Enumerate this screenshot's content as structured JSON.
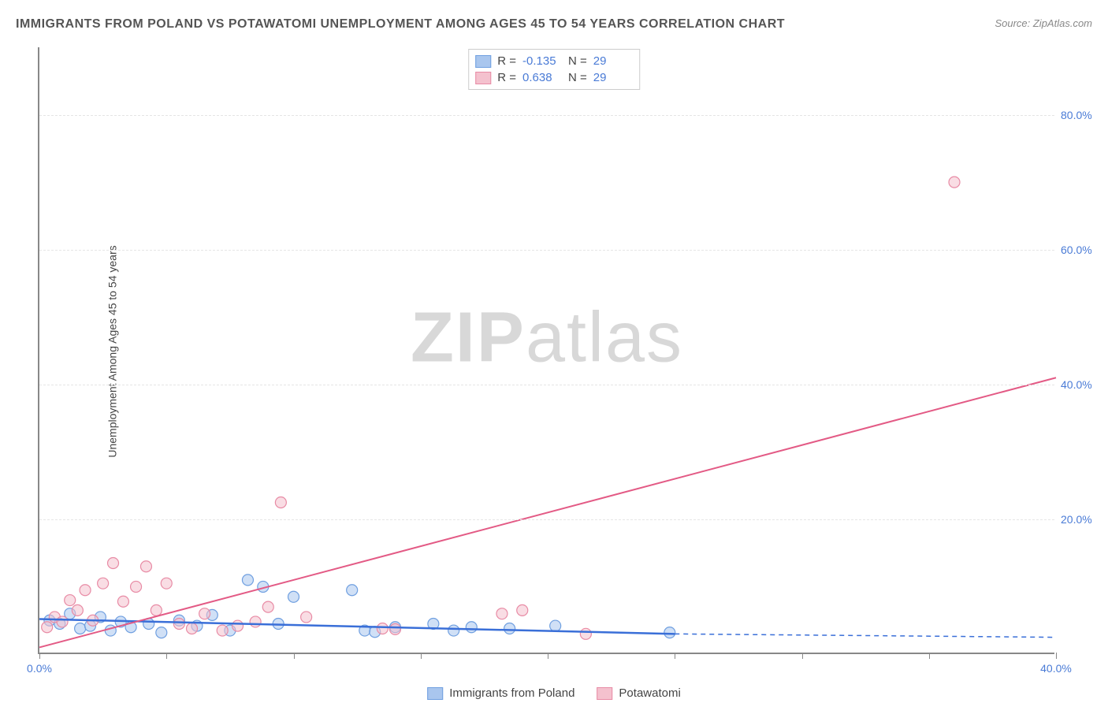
{
  "title": "IMMIGRANTS FROM POLAND VS POTAWATOMI UNEMPLOYMENT AMONG AGES 45 TO 54 YEARS CORRELATION CHART",
  "source": "Source: ZipAtlas.com",
  "ylabel": "Unemployment Among Ages 45 to 54 years",
  "watermark_bold": "ZIP",
  "watermark_light": "atlas",
  "chart": {
    "type": "scatter-correlation",
    "xlim": [
      0,
      40
    ],
    "ylim": [
      0,
      90
    ],
    "yticks": [
      20,
      40,
      60,
      80
    ],
    "ytick_labels": [
      "20.0%",
      "40.0%",
      "60.0%",
      "80.0%"
    ],
    "xticks": [
      0,
      5,
      10,
      15,
      20,
      25,
      30,
      35,
      40
    ],
    "xtick_label_first": "0.0%",
    "xtick_label_last": "40.0%",
    "background_color": "#ffffff",
    "grid_color": "#e5e5e5",
    "axis_color": "#888888",
    "tick_label_color": "#4a7bd6",
    "marker_radius": 7,
    "marker_opacity": 0.55,
    "series": [
      {
        "name": "Immigrants from Poland",
        "color_fill": "#a9c6ee",
        "color_stroke": "#6f9fe0",
        "R": "-0.135",
        "N": "29",
        "trend": {
          "x1": 0,
          "y1": 5.2,
          "x2": 25,
          "y2": 3.0,
          "color": "#3a6fd8",
          "width": 2.5,
          "dashed_ext": {
            "x1": 25,
            "x2": 40,
            "y1": 3.0,
            "y2": 2.5
          }
        },
        "points": [
          [
            0.4,
            5.0
          ],
          [
            0.8,
            4.5
          ],
          [
            1.2,
            6.0
          ],
          [
            1.6,
            3.8
          ],
          [
            2.0,
            4.2
          ],
          [
            2.4,
            5.5
          ],
          [
            2.8,
            3.5
          ],
          [
            3.2,
            4.8
          ],
          [
            3.6,
            4.0
          ],
          [
            4.3,
            4.5
          ],
          [
            4.8,
            3.2
          ],
          [
            5.5,
            5.0
          ],
          [
            6.2,
            4.2
          ],
          [
            6.8,
            5.8
          ],
          [
            7.5,
            3.5
          ],
          [
            8.2,
            11.0
          ],
          [
            8.8,
            10.0
          ],
          [
            9.4,
            4.5
          ],
          [
            10.0,
            8.5
          ],
          [
            12.3,
            9.5
          ],
          [
            12.8,
            3.5
          ],
          [
            13.2,
            3.3
          ],
          [
            14.0,
            4.0
          ],
          [
            15.5,
            4.5
          ],
          [
            16.3,
            3.5
          ],
          [
            17.0,
            4.0
          ],
          [
            18.5,
            3.8
          ],
          [
            20.3,
            4.2
          ],
          [
            24.8,
            3.2
          ]
        ]
      },
      {
        "name": "Potawatomi",
        "color_fill": "#f4c1ce",
        "color_stroke": "#e88ba5",
        "R": "0.638",
        "N": "29",
        "trend": {
          "x1": 0,
          "y1": 1.0,
          "x2": 40,
          "y2": 41.0,
          "color": "#e35a85",
          "width": 2
        },
        "points": [
          [
            0.3,
            4.0
          ],
          [
            0.6,
            5.5
          ],
          [
            0.9,
            4.8
          ],
          [
            1.2,
            8.0
          ],
          [
            1.5,
            6.5
          ],
          [
            1.8,
            9.5
          ],
          [
            2.1,
            5.0
          ],
          [
            2.5,
            10.5
          ],
          [
            2.9,
            13.5
          ],
          [
            3.3,
            7.8
          ],
          [
            3.8,
            10.0
          ],
          [
            4.2,
            13.0
          ],
          [
            4.6,
            6.5
          ],
          [
            5.0,
            10.5
          ],
          [
            5.5,
            4.5
          ],
          [
            6.0,
            3.8
          ],
          [
            6.5,
            6.0
          ],
          [
            7.2,
            3.5
          ],
          [
            7.8,
            4.2
          ],
          [
            8.5,
            4.8
          ],
          [
            9.0,
            7.0
          ],
          [
            9.5,
            22.5
          ],
          [
            10.5,
            5.5
          ],
          [
            13.5,
            3.8
          ],
          [
            14.0,
            3.7
          ],
          [
            18.2,
            6.0
          ],
          [
            19.0,
            6.5
          ],
          [
            21.5,
            3.0
          ],
          [
            36.0,
            70.0
          ]
        ]
      }
    ]
  },
  "stats_legend_labels": {
    "R": "R =",
    "N": "N ="
  },
  "bottom_legend": {
    "item1": "Immigrants from Poland",
    "item2": "Potawatomi"
  }
}
